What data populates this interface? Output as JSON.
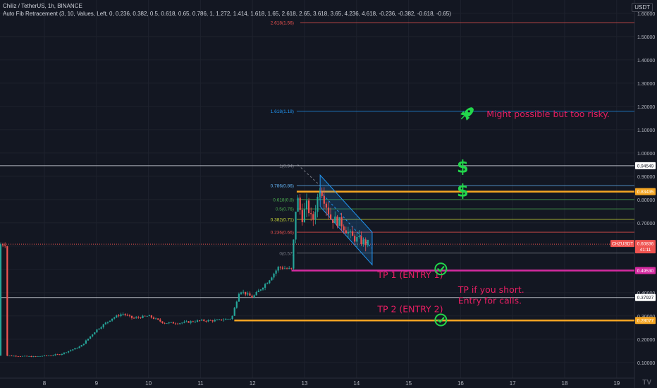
{
  "header": {
    "title": "Chiliz / TetherUS, 1h, BINANCE",
    "indicator": "Auto Fib Retracement (3, 10, Values, Left, 0, 0.236, 0.382, 0.5, 0.618, 0.65, 0.786, 1, 1.272, 1.414, 1.618, 1.65, 2.618, 2.65, 3.618, 3.65, 4.236, 4.618, -0.236, -0.382, -0.618, -0.65)",
    "currency": "USDT",
    "logo": "TV"
  },
  "colors": {
    "background": "#131722",
    "grid": "#1e222d",
    "up": "#26a69a",
    "down": "#ef5350",
    "magenta": "#d52aa0",
    "orange": "#f5a623",
    "pink_text": "#e91e63",
    "green_icon": "#22d64b",
    "channel": "#2196f3"
  },
  "chart_data": {
    "type": "candlestick",
    "symbol": "CHZUSDT",
    "timeframe": "1h",
    "y_ticks": [
      "1.60000",
      "1.50000",
      "1.40000",
      "1.30000",
      "1.20000",
      "1.10000",
      "1.00000",
      "0.90000",
      "0.80000",
      "0.70000",
      "0.60000",
      "0.50000",
      "0.40000",
      "0.30000",
      "0.20000",
      "0.10000"
    ],
    "x_ticks": [
      "8",
      "9",
      "10",
      "11",
      "12",
      "13",
      "14",
      "15",
      "16",
      "17",
      "18",
      "19"
    ],
    "ylim": [
      0.05,
      1.64
    ],
    "price_path": [
      {
        "day": 7.25,
        "price": 0.13
      },
      {
        "day": 7.8,
        "price": 0.125
      },
      {
        "day": 8.3,
        "price": 0.135
      },
      {
        "day": 8.7,
        "price": 0.17
      },
      {
        "day": 9.0,
        "price": 0.24
      },
      {
        "day": 9.3,
        "price": 0.29
      },
      {
        "day": 9.5,
        "price": 0.31
      },
      {
        "day": 9.7,
        "price": 0.29
      },
      {
        "day": 10.0,
        "price": 0.3
      },
      {
        "day": 10.3,
        "price": 0.27
      },
      {
        "day": 10.6,
        "price": 0.27
      },
      {
        "day": 11.0,
        "price": 0.28
      },
      {
        "day": 11.3,
        "price": 0.28
      },
      {
        "day": 11.6,
        "price": 0.29
      },
      {
        "day": 11.75,
        "price": 0.41
      },
      {
        "day": 12.0,
        "price": 0.38
      },
      {
        "day": 12.3,
        "price": 0.45
      },
      {
        "day": 12.5,
        "price": 0.51
      },
      {
        "day": 12.75,
        "price": 0.5
      },
      {
        "day": 12.85,
        "price": 0.82
      },
      {
        "day": 12.95,
        "price": 0.72
      },
      {
        "day": 13.05,
        "price": 0.78
      },
      {
        "day": 13.15,
        "price": 0.7
      },
      {
        "day": 13.3,
        "price": 0.86
      },
      {
        "day": 13.5,
        "price": 0.72
      },
      {
        "day": 13.7,
        "price": 0.7
      },
      {
        "day": 13.9,
        "price": 0.64
      },
      {
        "day": 14.1,
        "price": 0.62
      },
      {
        "day": 14.25,
        "price": 0.608
      }
    ],
    "fib_levels": [
      {
        "label": "2.618(1.56)",
        "value": 1.56,
        "color": "#ef5350"
      },
      {
        "label": "1.618(1.18)",
        "value": 1.18,
        "color": "#2196f3"
      },
      {
        "label": "1(0.94)",
        "value": 0.945,
        "color": "#787b86"
      },
      {
        "label": "0.786(0.86)",
        "value": 0.86,
        "color": "#64b5f6"
      },
      {
        "label": "0.618(0.8)",
        "value": 0.8,
        "color": "#4caf50"
      },
      {
        "label": "0.5(0.76)",
        "value": 0.76,
        "color": "#4caf50"
      },
      {
        "label": "0.382(0.71)",
        "value": 0.715,
        "color": "#cddc39"
      },
      {
        "label": "0.236(0.66)",
        "value": 0.66,
        "color": "#ef5350"
      },
      {
        "label": "0(0.57)",
        "value": 0.57,
        "color": "#787b86"
      }
    ],
    "horizontal_lines": [
      {
        "value": 0.94549,
        "label": "0.94549",
        "color": "#b2b5be",
        "style": "white"
      },
      {
        "value": 0.83435,
        "label": "0.83435",
        "color": "#f5a623",
        "style": "orange"
      },
      {
        "value": 0.4953,
        "label": "0.49530",
        "color": "#d52aa0",
        "style": "magenta"
      },
      {
        "value": 0.37927,
        "label": "0.37927",
        "color": "#b2b5be",
        "style": "white"
      },
      {
        "value": 0.28077,
        "label": "0.28077",
        "color": "#f5a623",
        "style": "orange"
      }
    ],
    "current_price": {
      "symbol": "CHZUSDT",
      "value": 0.60836,
      "label": "0.60836",
      "countdown": "41:11"
    },
    "annotations": [
      {
        "text": "Might possible but too risky.",
        "day": 16.5,
        "price": 1.155,
        "color": "#e91e63"
      },
      {
        "text": "TP 1 (ENTRY 1)",
        "day": 14.4,
        "price": 0.463,
        "color": "#e91e63"
      },
      {
        "text": "TP if you short.",
        "day": 15.95,
        "price": 0.4,
        "color": "#e91e63"
      },
      {
        "text": "Entry for calls.",
        "day": 15.95,
        "price": 0.352,
        "color": "#e91e63"
      },
      {
        "text": "TP 2 (ENTRY 2)",
        "day": 14.4,
        "price": 0.316,
        "color": "#e91e63"
      }
    ],
    "icons": [
      {
        "name": "rocket-icon",
        "day": 16.12,
        "price": 1.17
      },
      {
        "name": "dollar-icon",
        "day": 16.04,
        "price": 0.94
      },
      {
        "name": "dollar-icon",
        "day": 16.04,
        "price": 0.837
      },
      {
        "name": "check-circle-icon",
        "day": 15.62,
        "price": 0.502
      },
      {
        "name": "check-circle-icon",
        "day": 15.62,
        "price": 0.283
      }
    ]
  }
}
